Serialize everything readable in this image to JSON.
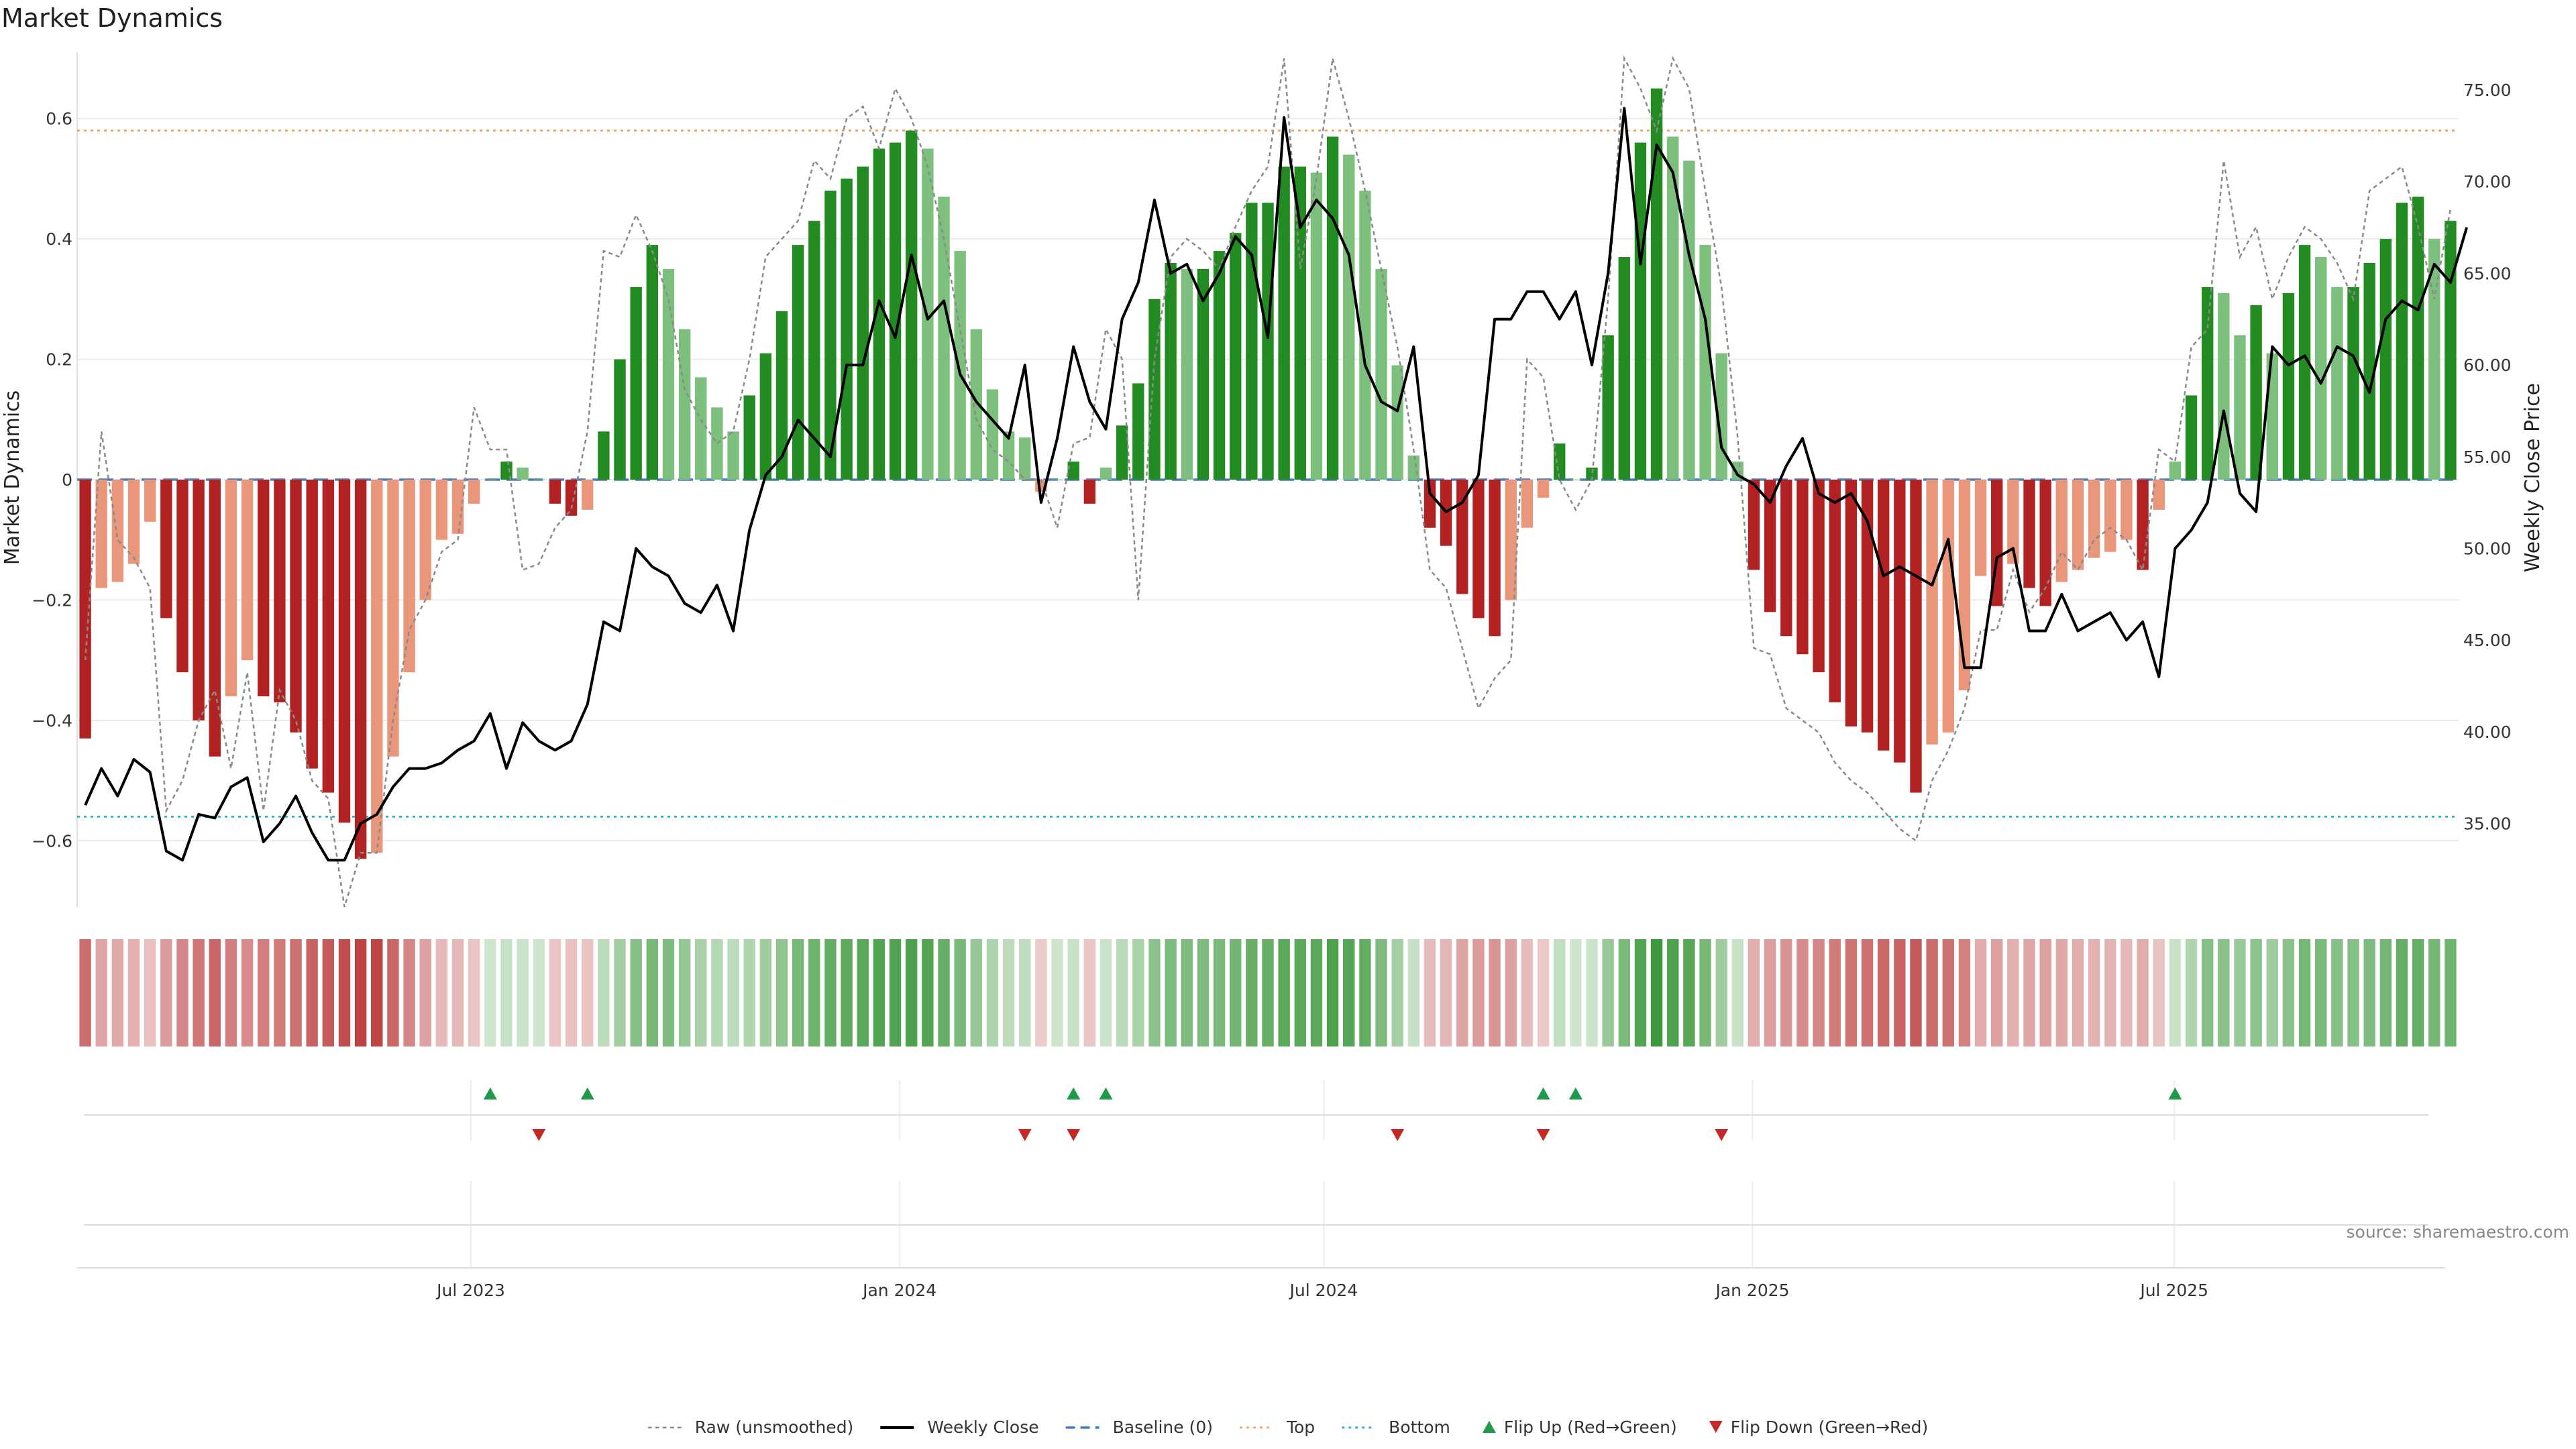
{
  "chart_data": {
    "type": "bar",
    "title": "Market Dynamics",
    "ylabel": "Market Dynamics",
    "y2label": "Weekly Close Price",
    "ylim": [
      -0.71,
      0.71
    ],
    "y2lim": [
      30.45,
      77.05
    ],
    "yticks": [
      -0.6,
      -0.4,
      -0.2,
      0,
      0.2,
      0.4,
      0.6
    ],
    "ytick_labels": [
      "−0.6",
      "−0.4",
      "−0.2",
      "0",
      "0.2",
      "0.4",
      "0.6"
    ],
    "y2ticks": [
      35,
      40,
      45,
      50,
      55,
      60,
      65,
      70,
      75
    ],
    "y2tick_labels": [
      "35.00",
      "40.00",
      "45.00",
      "50.00",
      "55.00",
      "60.00",
      "65.00",
      "70.00",
      "75.00"
    ],
    "x_start": "2023-01-13",
    "x_end": "2025-10-31",
    "xticks": [
      "2023-07-01",
      "2024-01-01",
      "2024-07-01",
      "2025-01-01",
      "2025-07-01"
    ],
    "xtick_labels": [
      "Jul 2023",
      "Jan 2024",
      "Jul 2024",
      "Jan 2025",
      "Jul 2025"
    ],
    "top_level": 0.58,
    "bottom_level": -0.56,
    "baseline": 0,
    "values": [
      -0.43,
      -0.18,
      -0.17,
      -0.14,
      -0.07,
      -0.23,
      -0.32,
      -0.4,
      -0.46,
      -0.36,
      -0.3,
      -0.36,
      -0.37,
      -0.42,
      -0.48,
      -0.52,
      -0.57,
      -0.63,
      -0.62,
      -0.46,
      -0.32,
      -0.2,
      -0.1,
      -0.09,
      -0.04,
      0.0,
      0.03,
      0.02,
      0.0,
      -0.04,
      -0.06,
      -0.05,
      0.08,
      0.2,
      0.32,
      0.39,
      0.35,
      0.25,
      0.17,
      0.12,
      0.08,
      0.14,
      0.21,
      0.28,
      0.39,
      0.43,
      0.48,
      0.5,
      0.52,
      0.55,
      0.56,
      0.58,
      0.55,
      0.47,
      0.38,
      0.25,
      0.15,
      0.08,
      0.07,
      -0.02,
      0.0,
      0.03,
      -0.04,
      0.02,
      0.09,
      0.16,
      0.3,
      0.36,
      0.35,
      0.35,
      0.38,
      0.41,
      0.46,
      0.46,
      0.52,
      0.52,
      0.51,
      0.57,
      0.54,
      0.48,
      0.35,
      0.19,
      0.04,
      -0.08,
      -0.11,
      -0.19,
      -0.23,
      -0.26,
      -0.2,
      -0.08,
      -0.03,
      0.06,
      0.0,
      0.02,
      0.24,
      0.37,
      0.56,
      0.65,
      0.57,
      0.53,
      0.39,
      0.21,
      0.03,
      -0.15,
      -0.22,
      -0.26,
      -0.29,
      -0.32,
      -0.37,
      -0.41,
      -0.42,
      -0.45,
      -0.47,
      -0.52,
      -0.44,
      -0.42,
      -0.35,
      -0.16,
      -0.21,
      -0.14,
      -0.18,
      -0.21,
      -0.17,
      -0.15,
      -0.13,
      -0.12,
      -0.1,
      -0.15,
      -0.05,
      0.03,
      0.14,
      0.32,
      0.31,
      0.24,
      0.29,
      0.21,
      0.31,
      0.39,
      0.37,
      0.32,
      0.32,
      0.36,
      0.4,
      0.46,
      0.47,
      0.4,
      0.43
    ],
    "series": [
      {
        "name": "Raw (unsmoothed)",
        "values": [
          -0.3,
          0.08,
          -0.1,
          -0.13,
          -0.18,
          -0.55,
          -0.5,
          -0.4,
          -0.35,
          -0.48,
          -0.32,
          -0.55,
          -0.35,
          -0.4,
          -0.5,
          -0.53,
          -0.71,
          -0.62,
          -0.62,
          -0.4,
          -0.25,
          -0.2,
          -0.12,
          -0.1,
          0.12,
          0.05,
          0.05,
          -0.15,
          -0.14,
          -0.08,
          -0.05,
          0.08,
          0.38,
          0.37,
          0.44,
          0.38,
          0.3,
          0.15,
          0.1,
          0.06,
          0.08,
          0.2,
          0.37,
          0.4,
          0.43,
          0.53,
          0.5,
          0.6,
          0.62,
          0.55,
          0.65,
          0.6,
          0.52,
          0.4,
          0.25,
          0.1,
          0.05,
          0.03,
          0.0,
          0.0,
          -0.08,
          0.06,
          0.07,
          0.25,
          0.2,
          -0.2,
          0.2,
          0.37,
          0.4,
          0.38,
          0.35,
          0.42,
          0.48,
          0.52,
          0.7,
          0.35,
          0.5,
          0.7,
          0.6,
          0.48,
          0.35,
          0.22,
          0.05,
          -0.15,
          -0.18,
          -0.28,
          -0.38,
          -0.33,
          -0.3,
          0.2,
          0.17,
          0.0,
          -0.05,
          0.0,
          0.3,
          0.7,
          0.65,
          0.58,
          0.7,
          0.65,
          0.48,
          0.32,
          0.07,
          -0.28,
          -0.29,
          -0.38,
          -0.4,
          -0.42,
          -0.47,
          -0.5,
          -0.52,
          -0.55,
          -0.58,
          -0.6,
          -0.5,
          -0.45,
          -0.38,
          -0.25,
          -0.25,
          -0.15,
          -0.22,
          -0.18,
          -0.12,
          -0.15,
          -0.1,
          -0.08,
          -0.1,
          -0.15,
          0.05,
          0.03,
          0.22,
          0.25,
          0.53,
          0.37,
          0.42,
          0.3,
          0.37,
          0.42,
          0.4,
          0.36,
          0.3,
          0.48,
          0.5,
          0.52,
          0.42,
          0.3,
          0.45
        ]
      },
      {
        "name": "Weekly Close",
        "values": [
          36.0,
          38.0,
          36.5,
          38.5,
          37.8,
          33.5,
          33.0,
          35.5,
          35.3,
          37.0,
          37.5,
          34.0,
          35.0,
          36.5,
          34.5,
          33.0,
          33.0,
          35.0,
          35.5,
          37.0,
          38.0,
          38.0,
          38.3,
          39.0,
          39.5,
          41.0,
          38.0,
          40.5,
          39.5,
          39.0,
          39.5,
          41.5,
          46.0,
          45.5,
          50.0,
          49.0,
          48.5,
          47.0,
          46.5,
          48.0,
          45.5,
          51.0,
          54.0,
          55.0,
          57.0,
          56.0,
          55.0,
          60.0,
          60.0,
          63.5,
          61.5,
          66.0,
          62.5,
          63.5,
          59.5,
          58.0,
          57.0,
          56.0,
          60.0,
          52.5,
          56.0,
          61.0,
          58.0,
          56.5,
          62.5,
          64.5,
          69.0,
          65.0,
          65.5,
          63.5,
          65.0,
          67.0,
          66.0,
          61.5,
          73.5,
          67.5,
          69.0,
          68.0,
          66.0,
          60.0,
          58.0,
          57.5,
          61.0,
          53.0,
          52.0,
          52.5,
          54.0,
          62.5,
          62.5,
          64.0,
          64.0,
          62.5,
          64.0,
          60.0,
          65.0,
          74.0,
          65.5,
          72.0,
          70.5,
          66.0,
          62.5,
          55.5,
          54.0,
          53.5,
          52.5,
          54.5,
          56.0,
          53.0,
          52.5,
          53.0,
          51.5,
          48.5,
          49.0,
          48.5,
          48.0,
          50.5,
          43.5,
          43.5,
          49.5,
          50.0,
          45.5,
          45.5,
          47.5,
          45.5,
          46.0,
          46.5,
          45.0,
          46.0,
          43.0,
          50.0,
          51.0,
          52.5,
          57.5,
          53.0,
          52.0,
          61.0,
          60.0,
          60.5,
          59.0,
          61.0,
          60.5,
          58.5,
          62.5,
          63.5,
          63.0,
          65.5,
          64.5,
          67.5
        ]
      }
    ],
    "legend_entries": [
      "Raw (unsmoothed)",
      "Weekly Close",
      "Baseline (0)",
      "Top",
      "Bottom",
      "Flip Up (Red→Green)",
      "Flip Down (Green→Red)"
    ],
    "legend_placement": "bottom-center",
    "flip_up_weeks": [
      25,
      31,
      61,
      63,
      90,
      92,
      129
    ],
    "flip_down_weeks": [
      28,
      58,
      61,
      81,
      90,
      101
    ],
    "colors": {
      "strong_green": "#228b22",
      "weak_green": "#7dbf7d",
      "strong_red": "#b22222",
      "weak_red": "#e9967a",
      "price_line": "#000000",
      "raw_line": "#8a8a8a",
      "baseline": "#4a7fbf",
      "top": "#f2a76b",
      "bottom": "#33b6c6",
      "flip_up": "#1e9a4a",
      "flip_down": "#c62828"
    }
  },
  "source_text": "source: sharemaestro.com"
}
